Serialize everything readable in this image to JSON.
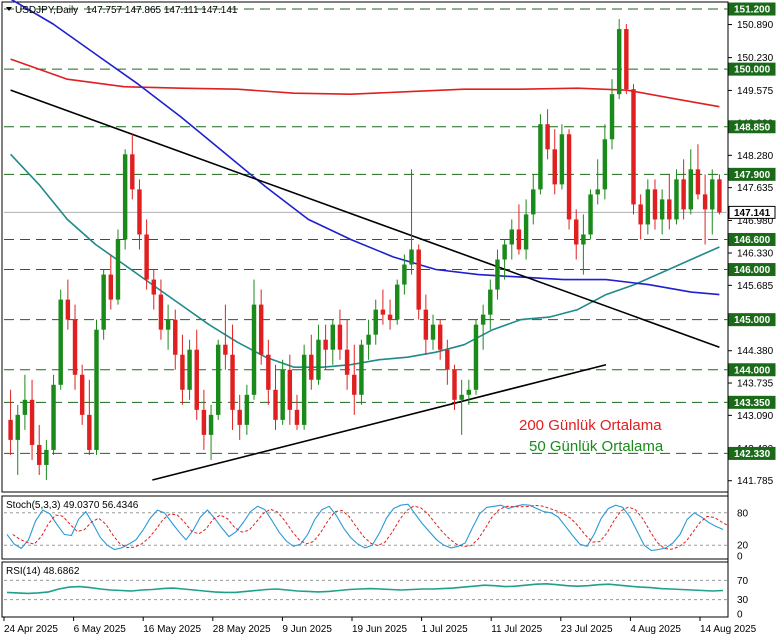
{
  "header": {
    "symbol": "USDJPY,Daily",
    "ohlc": "147.757 147.865 147.111 147.141"
  },
  "colors": {
    "bull": "#1a8a1a",
    "bear": "#e02020",
    "ma200": "#e02020",
    "ma50": "#1f8a8a",
    "ma_blue": "#1f1fd0",
    "trend": "#000000",
    "stoch_main": "#2a9ad8",
    "stoch_signal": "#e02020",
    "rsi": "#1fa08a",
    "level_line": "#1a6a1a",
    "grid": "#9a9a9a"
  },
  "chart_data": {
    "type": "candlestick",
    "y_range": [
      141.6,
      151.3
    ],
    "y_ticks": [
      "151.200",
      "150.890",
      "150.230",
      "149.575",
      "148.920",
      "148.280",
      "147.635",
      "146.980",
      "146.330",
      "145.685",
      "145.030",
      "144.380",
      "143.735",
      "143.090",
      "142.430",
      "141.785"
    ],
    "level_labels": [
      "151.200",
      "150.000",
      "148.850",
      "147.900",
      "147.141",
      "146.600",
      "146.000",
      "145.000",
      "144.000",
      "143.350",
      "142.330"
    ],
    "current_price": "147.141",
    "x_labels": [
      "24 Apr 2025",
      "6 May 2025",
      "16 May 2025",
      "28 May 2025",
      "9 Jun 2025",
      "19 Jun 2025",
      "1 Jul 2025",
      "11 Jul 2025",
      "23 Jul 2025",
      "4 Aug 2025",
      "14 Aug 2025"
    ],
    "ohlc": [
      [
        143.0,
        143.6,
        142.3,
        142.6
      ],
      [
        142.6,
        143.3,
        141.9,
        143.1
      ],
      [
        143.1,
        143.9,
        142.8,
        143.4
      ],
      [
        143.4,
        143.8,
        142.2,
        142.5
      ],
      [
        142.5,
        142.9,
        141.9,
        142.1
      ],
      [
        142.1,
        142.6,
        141.8,
        142.4
      ],
      [
        142.4,
        143.9,
        142.3,
        143.7
      ],
      [
        143.7,
        145.6,
        143.6,
        145.4
      ],
      [
        145.4,
        145.8,
        144.8,
        145.0
      ],
      [
        145.0,
        145.3,
        143.6,
        143.9
      ],
      [
        143.9,
        144.1,
        142.9,
        143.1
      ],
      [
        143.1,
        143.8,
        142.3,
        142.4
      ],
      [
        142.4,
        145.0,
        142.3,
        144.8
      ],
      [
        144.8,
        146.0,
        144.6,
        145.9
      ],
      [
        145.9,
        146.3,
        145.2,
        145.4
      ],
      [
        145.4,
        146.8,
        145.3,
        146.6
      ],
      [
        146.6,
        148.4,
        146.4,
        148.3
      ],
      [
        148.3,
        148.7,
        147.4,
        147.6
      ],
      [
        147.6,
        147.8,
        146.4,
        146.7
      ],
      [
        146.7,
        147.0,
        145.6,
        145.8
      ],
      [
        145.8,
        146.0,
        145.2,
        145.5
      ],
      [
        145.5,
        145.8,
        144.6,
        144.8
      ],
      [
        144.8,
        145.3,
        144.4,
        145.0
      ],
      [
        145.0,
        145.2,
        144.0,
        144.3
      ],
      [
        144.3,
        144.7,
        143.3,
        143.6
      ],
      [
        143.6,
        144.6,
        143.4,
        144.4
      ],
      [
        144.4,
        144.8,
        143.0,
        143.2
      ],
      [
        143.2,
        143.6,
        142.4,
        142.7
      ],
      [
        142.7,
        143.3,
        142.2,
        143.1
      ],
      [
        143.1,
        144.6,
        143.0,
        144.5
      ],
      [
        144.5,
        145.3,
        144.0,
        144.3
      ],
      [
        144.3,
        144.9,
        142.8,
        143.2
      ],
      [
        143.2,
        143.5,
        142.6,
        142.9
      ],
      [
        142.9,
        143.7,
        142.7,
        143.5
      ],
      [
        143.5,
        145.8,
        143.4,
        145.3
      ],
      [
        145.3,
        145.6,
        144.1,
        144.3
      ],
      [
        144.3,
        144.6,
        143.3,
        143.6
      ],
      [
        143.6,
        144.1,
        142.8,
        143.0
      ],
      [
        143.0,
        144.2,
        142.9,
        144.0
      ],
      [
        144.0,
        144.3,
        142.9,
        143.2
      ],
      [
        143.2,
        143.5,
        142.8,
        142.9
      ],
      [
        142.9,
        144.5,
        142.8,
        144.3
      ],
      [
        144.3,
        144.7,
        143.6,
        143.8
      ],
      [
        143.8,
        144.9,
        143.7,
        144.6
      ],
      [
        144.6,
        144.9,
        144.0,
        144.4
      ],
      [
        144.4,
        145.0,
        144.1,
        144.9
      ],
      [
        144.9,
        145.2,
        144.2,
        144.4
      ],
      [
        144.4,
        145.0,
        143.6,
        143.9
      ],
      [
        143.9,
        144.5,
        143.1,
        143.5
      ],
      [
        143.5,
        144.6,
        143.3,
        144.5
      ],
      [
        144.5,
        145.0,
        144.2,
        144.7
      ],
      [
        144.7,
        145.4,
        144.5,
        145.2
      ],
      [
        145.2,
        145.6,
        144.9,
        145.1
      ],
      [
        145.1,
        145.4,
        144.8,
        145.0
      ],
      [
        145.0,
        145.8,
        144.9,
        145.7
      ],
      [
        145.7,
        146.3,
        145.5,
        146.1
      ],
      [
        146.1,
        148.0,
        145.9,
        146.4
      ],
      [
        146.4,
        146.5,
        145.0,
        145.2
      ],
      [
        145.2,
        145.5,
        144.3,
        144.6
      ],
      [
        144.6,
        145.1,
        144.4,
        144.9
      ],
      [
        144.9,
        145.0,
        144.2,
        144.4
      ],
      [
        144.4,
        144.6,
        143.7,
        144.0
      ],
      [
        144.0,
        144.1,
        143.2,
        143.4
      ],
      [
        143.4,
        143.8,
        142.7,
        143.5
      ],
      [
        143.5,
        143.8,
        143.3,
        143.6
      ],
      [
        143.6,
        145.0,
        143.5,
        144.9
      ],
      [
        144.9,
        145.3,
        144.4,
        145.1
      ],
      [
        145.1,
        145.8,
        144.8,
        145.6
      ],
      [
        145.6,
        146.4,
        145.4,
        146.2
      ],
      [
        146.2,
        146.6,
        145.8,
        146.5
      ],
      [
        146.5,
        147.0,
        146.2,
        146.8
      ],
      [
        146.8,
        147.3,
        146.3,
        146.4
      ],
      [
        146.4,
        147.4,
        146.2,
        147.1
      ],
      [
        147.1,
        147.9,
        146.9,
        147.6
      ],
      [
        147.6,
        149.1,
        147.5,
        148.9
      ],
      [
        148.9,
        149.2,
        148.2,
        148.4
      ],
      [
        148.4,
        148.8,
        147.5,
        147.7
      ],
      [
        147.7,
        148.9,
        147.6,
        148.7
      ],
      [
        148.7,
        148.8,
        146.8,
        147.0
      ],
      [
        147.0,
        147.2,
        146.2,
        146.5
      ],
      [
        146.5,
        147.1,
        145.9,
        146.7
      ],
      [
        146.7,
        147.6,
        146.6,
        147.5
      ],
      [
        147.5,
        148.2,
        147.3,
        147.6
      ],
      [
        147.6,
        148.9,
        147.4,
        148.6
      ],
      [
        148.6,
        149.8,
        148.4,
        149.5
      ],
      [
        149.5,
        151.0,
        149.4,
        150.8
      ],
      [
        150.8,
        150.9,
        149.5,
        149.6
      ],
      [
        149.6,
        149.7,
        147.1,
        147.3
      ],
      [
        147.3,
        147.5,
        146.6,
        146.9
      ],
      [
        146.9,
        147.8,
        146.7,
        147.6
      ],
      [
        147.6,
        147.8,
        146.8,
        147.0
      ],
      [
        147.0,
        147.6,
        146.7,
        147.4
      ],
      [
        147.4,
        147.9,
        146.8,
        147.0
      ],
      [
        147.0,
        148.0,
        146.9,
        147.8
      ],
      [
        147.8,
        148.2,
        147.0,
        147.2
      ],
      [
        147.2,
        148.4,
        147.1,
        148.0
      ],
      [
        148.0,
        148.5,
        147.4,
        147.5
      ],
      [
        147.5,
        147.9,
        146.5,
        147.2
      ],
      [
        147.2,
        148.0,
        146.7,
        147.8
      ],
      [
        147.8,
        147.9,
        147.1,
        147.14
      ]
    ],
    "moving_averages": [
      {
        "name": "200 Günlük Ortalama",
        "color": "#e02020",
        "x": [
          0,
          8,
          16,
          24,
          32,
          40,
          48,
          56,
          64,
          72,
          80,
          87,
          94,
          100
        ],
        "values": [
          150.2,
          149.8,
          149.65,
          149.62,
          149.6,
          149.52,
          149.5,
          149.55,
          149.6,
          149.6,
          149.62,
          149.58,
          149.4,
          149.25
        ]
      },
      {
        "name": "50 Günlük Ortalama",
        "color": "#1f8a8a",
        "x": [
          0,
          4,
          8,
          12,
          16,
          20,
          24,
          28,
          32,
          36,
          40,
          44,
          48,
          52,
          56,
          60,
          64,
          68,
          72,
          76,
          80,
          84,
          88,
          92,
          96,
          100
        ],
        "values": [
          148.3,
          147.7,
          147.0,
          146.5,
          146.1,
          145.7,
          145.3,
          144.9,
          144.55,
          144.25,
          144.05,
          144.05,
          144.1,
          144.2,
          144.25,
          144.35,
          144.5,
          144.8,
          145.0,
          145.05,
          145.2,
          145.5,
          145.7,
          145.95,
          146.2,
          146.45
        ]
      },
      {
        "name": "",
        "color": "#1f1fd0",
        "x": [
          0,
          6,
          12,
          18,
          24,
          30,
          36,
          42,
          48,
          54,
          60,
          66,
          72,
          78,
          84,
          90,
          96,
          100
        ],
        "values": [
          151.4,
          150.9,
          150.3,
          149.7,
          149.05,
          148.35,
          147.65,
          147.0,
          146.6,
          146.25,
          146.0,
          145.9,
          145.85,
          145.8,
          145.8,
          145.7,
          145.55,
          145.5
        ]
      }
    ],
    "trend_lines": [
      {
        "from": [
          0,
          149.58
        ],
        "to": [
          100,
          144.45
        ]
      },
      {
        "from": [
          20,
          141.8
        ],
        "to": [
          84,
          144.1
        ]
      }
    ],
    "legend": [
      "200 Günlük Ortalama",
      "50 Günlük Ortalama"
    ]
  },
  "stochastic": {
    "label": "Stoch(5,3,3) 49.0370 56.4346",
    "range": [
      0,
      100
    ],
    "levels": [
      80,
      20
    ],
    "tick_labels": [
      "80",
      "20",
      "0"
    ],
    "main": [
      40,
      22,
      14,
      30,
      65,
      85,
      78,
      58,
      40,
      38,
      68,
      82,
      60,
      35,
      20,
      12,
      15,
      22,
      30,
      48,
      70,
      85,
      80,
      62,
      45,
      30,
      48,
      72,
      85,
      70,
      52,
      36,
      45,
      62,
      82,
      92,
      86,
      66,
      44,
      28,
      18,
      22,
      40,
      68,
      86,
      92,
      75,
      52,
      34,
      22,
      15,
      20,
      42,
      70,
      88,
      94,
      96,
      78,
      60,
      45,
      30,
      20,
      15,
      18,
      24,
      52,
      78,
      90,
      92,
      94,
      88,
      92,
      95,
      94,
      88,
      82,
      80,
      72,
      55,
      38,
      22,
      18,
      40,
      70,
      88,
      94,
      90,
      72,
      46,
      20,
      10,
      12,
      15,
      24,
      40,
      68,
      80,
      72,
      62,
      55,
      49
    ]
  },
  "rsi": {
    "label": "RSI(14) 48.6862",
    "range": [
      0,
      100
    ],
    "tick_labels": [
      "70",
      "30",
      "0"
    ],
    "values": [
      45,
      44,
      43,
      44,
      46,
      52,
      56,
      57,
      55,
      52,
      50,
      49,
      48,
      50,
      51,
      53,
      54,
      52,
      50,
      48,
      46,
      45,
      45,
      47,
      49,
      51,
      52,
      50,
      48,
      47,
      46,
      47,
      49,
      51,
      52,
      53,
      52,
      51,
      50,
      51,
      52,
      52,
      53,
      54,
      56,
      58,
      60,
      59,
      57,
      58,
      60,
      62,
      63,
      61,
      59,
      58,
      59,
      61,
      62,
      60,
      58,
      56,
      55,
      53,
      52,
      51,
      50,
      49,
      48,
      49
    ]
  }
}
